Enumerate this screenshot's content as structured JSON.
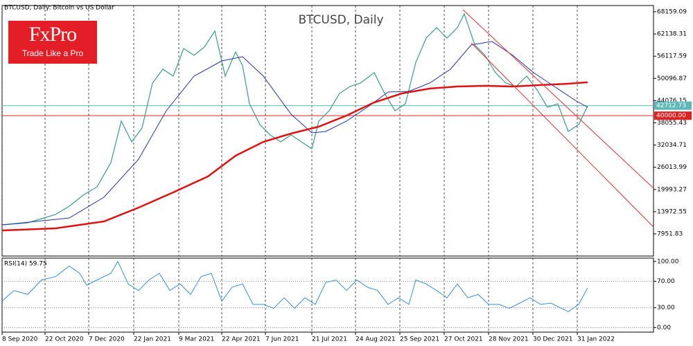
{
  "header": {
    "symbol_info": "BTCUSD, Daily:  Bitcoin vs US Dollar"
  },
  "logo": {
    "brand": "FxPro",
    "tagline": "Trade Like a Pro"
  },
  "chart_data": [
    {
      "type": "line",
      "title": "BTCUSD, Daily",
      "xlim": [
        0,
        940
      ],
      "ylim": [
        1950,
        69850
      ],
      "yticks": [
        68159.09,
        62138.31,
        56117.59,
        50096.87,
        44076.15,
        38055.43,
        32034.71,
        26013.99,
        19993.27,
        13972.55,
        7951.83
      ],
      "xticks": [
        {
          "value": 0,
          "label": "8 Sep 2020"
        },
        {
          "value": 62,
          "label": "22 Oct 2020"
        },
        {
          "value": 125,
          "label": "7 Dec 2020"
        },
        {
          "value": 190,
          "label": "22 Jan 2021"
        },
        {
          "value": 255,
          "label": "9 Mar 2021"
        },
        {
          "value": 317,
          "label": "22 Apr 2021"
        },
        {
          "value": 380,
          "label": "7 Jun 2021"
        },
        {
          "value": 447,
          "label": "21 Jul 2021"
        },
        {
          "value": 510,
          "label": "24 Aug 2021"
        },
        {
          "value": 574,
          "label": "25 Sep 2021"
        },
        {
          "value": 638,
          "label": "27 Oct 2021"
        },
        {
          "value": 702,
          "label": "28 Nov 2021"
        },
        {
          "value": 766,
          "label": "30 Dec 2021"
        },
        {
          "value": 830,
          "label": "31 Jan 2022"
        }
      ],
      "grid": true,
      "levels": [
        {
          "value": 42712.73,
          "label": "42712.73",
          "color": "#5fb8b8"
        },
        {
          "value": 40000,
          "label": "40000.00",
          "color": "#e02020"
        }
      ],
      "series": [
        {
          "color": "#3a9a8a",
          "width": 1.2,
          "x": [
            0,
            37,
            57,
            77,
            97,
            117,
            137,
            157,
            172,
            187,
            202,
            217,
            232,
            247,
            262,
            277,
            292,
            307,
            322,
            337,
            347,
            357,
            372,
            387,
            402,
            417,
            432,
            447,
            457,
            472,
            487,
            502,
            517,
            537,
            552,
            567,
            582,
            597,
            612,
            627,
            642,
            657,
            667,
            682,
            697,
            712,
            727,
            742,
            757,
            772,
            787,
            802,
            817,
            832,
            845
          ],
          "values": [
            10390,
            10950,
            12080,
            13200,
            15450,
            18460,
            20710,
            27280,
            38530,
            32900,
            36660,
            48850,
            52600,
            50720,
            58230,
            56350,
            58600,
            62920,
            50720,
            57290,
            53540,
            43220,
            37590,
            34780,
            32900,
            34780,
            32900,
            31030,
            38530,
            41340,
            46030,
            47910,
            48850,
            51660,
            46030,
            41340,
            43220,
            54480,
            61040,
            63860,
            61040,
            63860,
            67610,
            59170,
            56350,
            51660,
            48850,
            47910,
            50720,
            46970,
            42280,
            43220,
            35720,
            37590,
            42660
          ]
        },
        {
          "color": "#2233aa",
          "width": 1,
          "x": [
            0,
            97,
            147,
            197,
            237,
            277,
            317,
            347,
            377,
            417,
            447,
            467,
            497,
            527,
            557,
            587,
            617,
            647,
            677,
            707,
            737,
            767,
            797,
            827,
            845
          ],
          "values": [
            10390,
            12270,
            17900,
            28210,
            41340,
            50720,
            54850,
            55980,
            50720,
            40410,
            35340,
            35720,
            38530,
            42280,
            46410,
            46600,
            48850,
            52600,
            59170,
            60110,
            56350,
            51660,
            47910,
            44160,
            42280
          ]
        },
        {
          "color": "#dd1111",
          "width": 2.5,
          "x": [
            0,
            77,
            147,
            197,
            247,
            297,
            337,
            377,
            417,
            457,
            497,
            537,
            577,
            617,
            657,
            697,
            737,
            777,
            817,
            845
          ],
          "values": [
            8890,
            9450,
            11330,
            15080,
            19210,
            23520,
            29150,
            32900,
            35150,
            37030,
            40030,
            43590,
            46030,
            47350,
            47910,
            48100,
            47910,
            48290,
            48660,
            49040
          ]
        }
      ]
    },
    {
      "type": "line",
      "title": "RSI(14) 59.75",
      "xlim": [
        0,
        940
      ],
      "ylim": [
        -7,
        105
      ],
      "yticks": [
        {
          "value": 100,
          "label": "100.00"
        },
        {
          "value": 70,
          "label": "70.00"
        },
        {
          "value": 30,
          "label": "30.00"
        },
        {
          "value": 0,
          "label": "0.00"
        }
      ],
      "series": [
        {
          "color": "#3a8fd0",
          "width": 1,
          "x": [
            0,
            17,
            37,
            57,
            77,
            97,
            112,
            122,
            137,
            157,
            167,
            182,
            197,
            212,
            227,
            242,
            257,
            272,
            287,
            302,
            317,
            332,
            347,
            362,
            377,
            392,
            407,
            422,
            437,
            452,
            467,
            482,
            497,
            512,
            527,
            542,
            557,
            572,
            587,
            597,
            612,
            627,
            642,
            657,
            672,
            687,
            702,
            717,
            732,
            747,
            762,
            777,
            792,
            807,
            817,
            832,
            845
          ],
          "values": [
            40,
            56,
            50,
            72,
            77,
            93,
            82,
            64,
            72,
            82,
            100,
            66,
            56,
            72,
            82,
            56,
            66,
            50,
            77,
            82,
            40,
            61,
            66,
            35,
            35,
            29,
            45,
            29,
            45,
            35,
            68,
            72,
            56,
            72,
            61,
            56,
            35,
            45,
            35,
            72,
            66,
            56,
            45,
            66,
            45,
            50,
            35,
            35,
            29,
            37,
            45,
            35,
            37,
            29,
            24,
            35,
            60
          ]
        }
      ]
    }
  ]
}
